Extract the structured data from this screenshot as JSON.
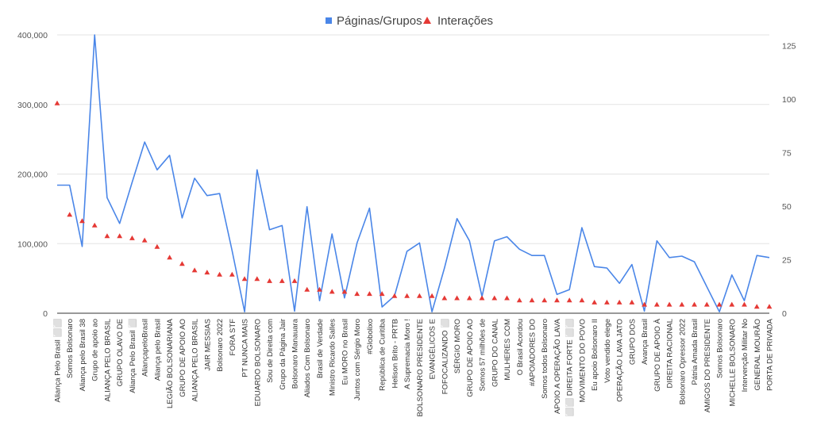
{
  "chart_data": {
    "type": "line",
    "legend": [
      {
        "name": "Páginas/Grupos",
        "color": "#4a86e8",
        "marker": "line"
      },
      {
        "name": "Interações",
        "color": "#e53935",
        "marker": "triangle"
      }
    ],
    "legend_position": "top-center",
    "grid": true,
    "y_left": {
      "ticks": [
        "0",
        "100,000",
        "200,000",
        "300,000",
        "400,000"
      ],
      "range": [
        0,
        400000
      ]
    },
    "y_right": {
      "ticks": [
        "0",
        "25",
        "50",
        "75",
        "100",
        "125"
      ],
      "range": [
        0,
        130
      ]
    },
    "categories": [
      "Aliança Pelo Brasil ⬜⬜",
      "Somos Bolsonaro",
      "Aliança pelo Brasil 38",
      "Grupo de apoio ao",
      "ALIANÇA PELO BRASIL",
      "GRUPO OLAVO DE",
      "Aliança Pelo Brasil ⬜",
      "AliançapeloBrasil",
      "Aliança pelo Brasil",
      "LEGIÃO BOLSONARIANA",
      "GRUPO DE APOIO AO",
      "ALIANÇA PELO BRASIL",
      "JAIR MESSIAS",
      "Bolsonaro 2022",
      "FORA STF",
      "PT NUNCA MAIS",
      "EDUARDO BOLSONARO",
      "Sou de Direita com",
      "Grupo da Página Jair",
      "Bolsonaro Manauara",
      "Aliados Com Bolsonaro",
      "Brasil de Verdade",
      "Ministro Ricardo Salles",
      "Eu MORO no Brasil",
      "Juntos com Sérgio Moro",
      "#Globolixo",
      "República de Curitiba",
      "Helison Brito - PRTB",
      "A Supremacia Moro !",
      "BOLSONARO PRESIDENTE",
      "EVANGÉLICOS E",
      "FOFOCALIZANDO ⬜",
      "SÉRGIO MORO",
      "GRUPO DE APOIO AO",
      "Somos 57 milhões de",
      "GRUPO DO CANAL",
      "MULHERES COM",
      "O Brasil Acordou",
      "#APOIADORES DO",
      "Somos todos Bolsonaro",
      "APOIO A OPERAÇÃO LAVA",
      "⬜⬜ DIREITA FORTE ⬜⬜",
      "MOVIMENTO DO POVO",
      "Eu apoio Bolsonaro II",
      "Voto vendido elege",
      "OPERAÇÃO LAVA JATO",
      "GRUPO DOS",
      "Avança Brasil",
      "GRUPO DE APOIO À",
      "DIREITA RACIONAL",
      "Bolsonaro Opressor 2022",
      "Pátria Amada Brasil",
      "AMIGOS DO PRESIDENTE",
      "Somos Bolsonaro",
      "MICHELLE BOLSONARO",
      "Intervenção Militar No",
      "GENERAL MOURÃO",
      "PORTA DE PRIVADA"
    ],
    "series": [
      {
        "name": "Páginas/Grupos",
        "axis": "left",
        "values": [
          184000,
          184000,
          96000,
          400000,
          166000,
          129000,
          188000,
          246000,
          206000,
          227000,
          137000,
          194000,
          169000,
          172000,
          90000,
          2000,
          206000,
          120000,
          126000,
          3000,
          153000,
          18000,
          114000,
          22000,
          101000,
          151000,
          9000,
          25000,
          89000,
          101000,
          2000,
          65000,
          136000,
          104000,
          24000,
          104000,
          110000,
          92000,
          83000,
          83000,
          27000,
          34000,
          123000,
          67000,
          65000,
          43000,
          70000,
          3000,
          104000,
          80000,
          82000,
          74000,
          38000,
          2000,
          55000,
          18000,
          83000,
          80000
        ]
      },
      {
        "name": "Interações",
        "axis": "right",
        "values": [
          98,
          46,
          43,
          41,
          36,
          36,
          35,
          34,
          31,
          26,
          23,
          20,
          19,
          18,
          18,
          16,
          16,
          15,
          15,
          15,
          11,
          11,
          10,
          10,
          9,
          9,
          9,
          8,
          8,
          8,
          8,
          7,
          7,
          7,
          7,
          7,
          7,
          6,
          6,
          6,
          6,
          6,
          6,
          5,
          5,
          5,
          5,
          4,
          4,
          4,
          4,
          4,
          4,
          4,
          4,
          4,
          3,
          3
        ]
      }
    ]
  }
}
